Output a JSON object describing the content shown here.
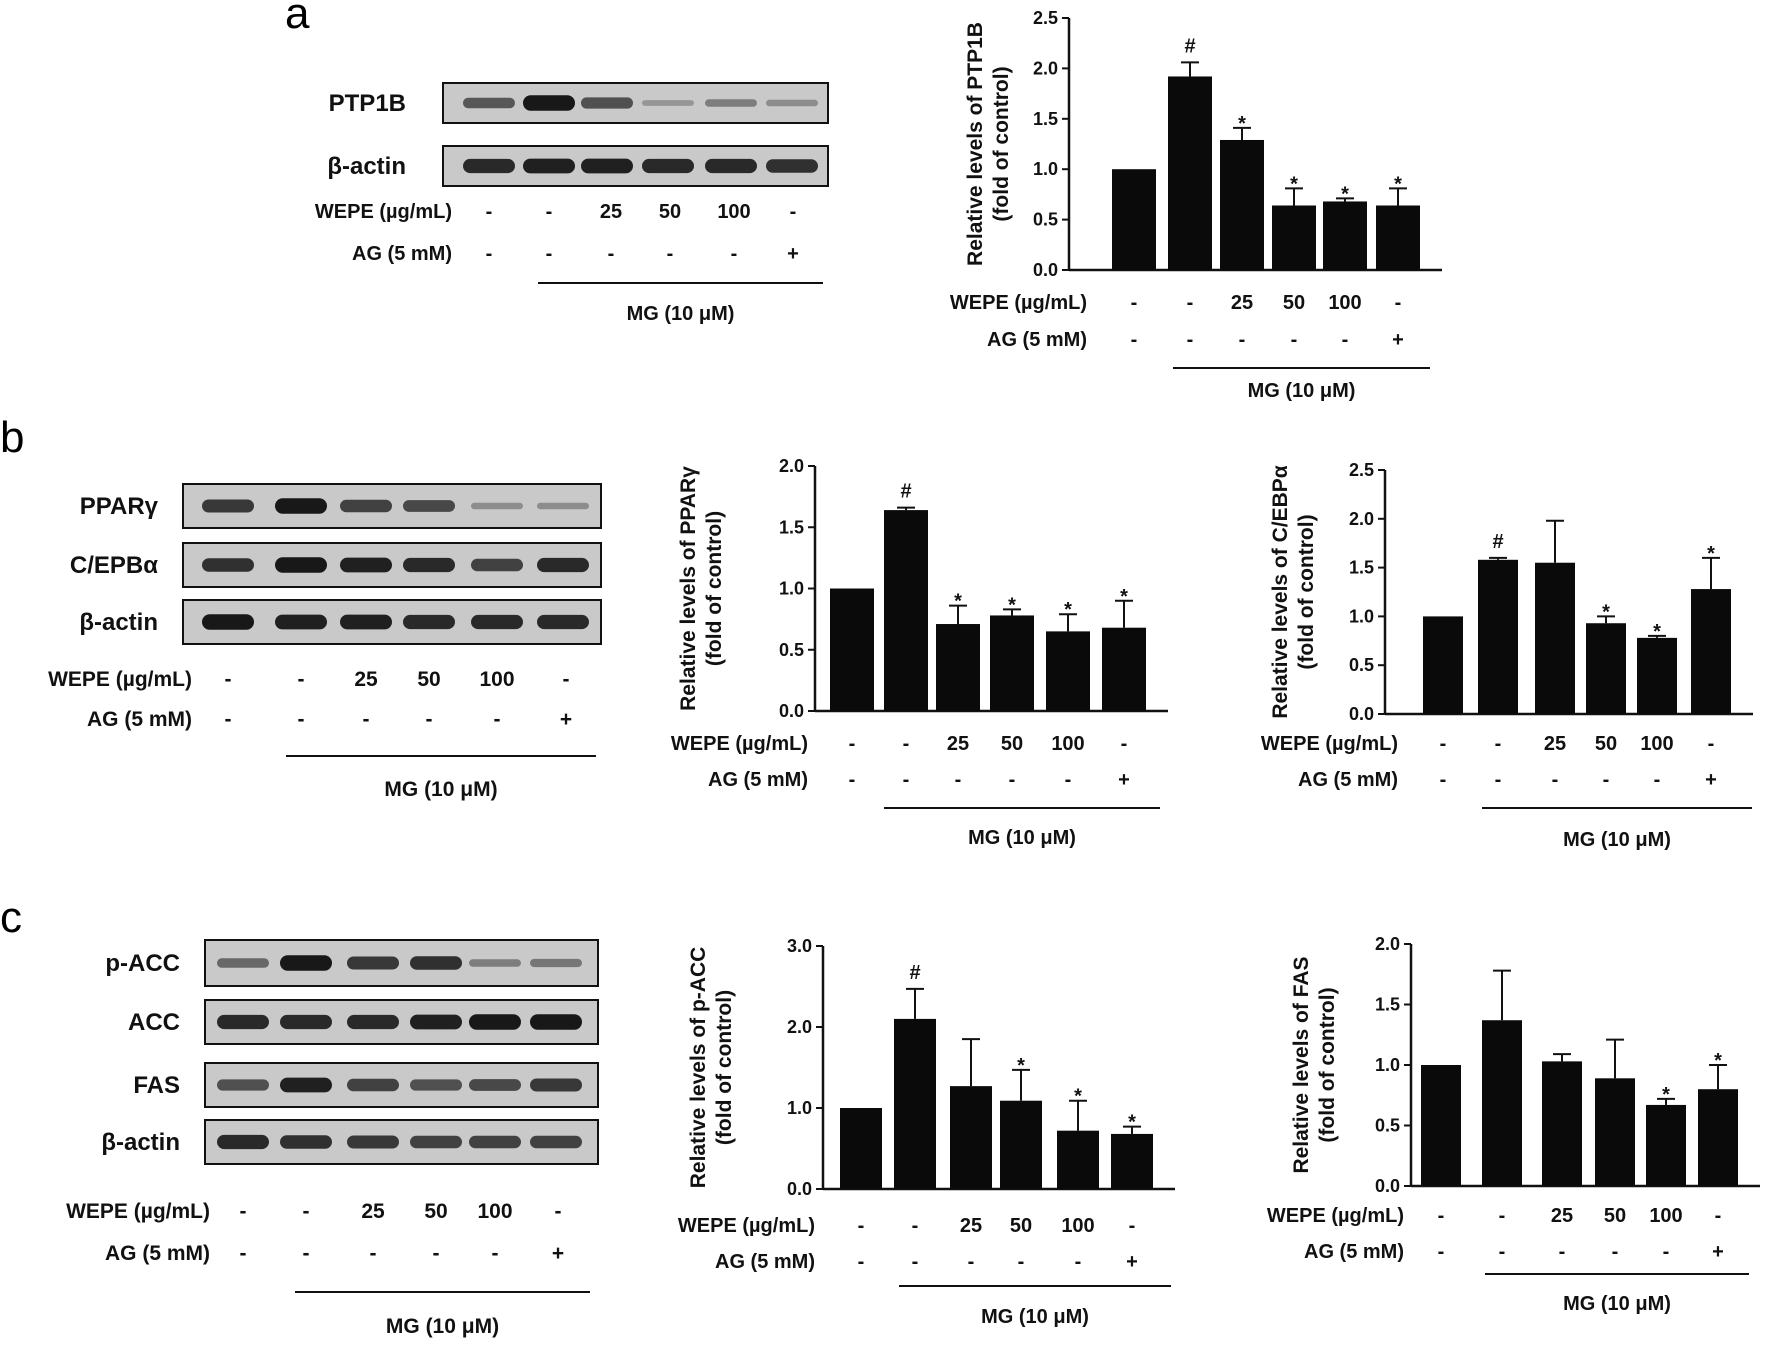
{
  "conditions": {
    "wepe_label": "WEPE (µg/mL)",
    "ag_label": "AG  (5 mM)",
    "wepe_values": [
      "-",
      "-",
      "25",
      "50",
      "100",
      "-"
    ],
    "ag_values": [
      "-",
      "-",
      "-",
      "-",
      "-",
      "+"
    ],
    "mg_label": "MG (10 μM)"
  },
  "panels": [
    {
      "letter": "a",
      "blots": [
        {
          "label": "PTP1B",
          "intensities": [
            0.55,
            0.95,
            0.6,
            0.15,
            0.3,
            0.2
          ]
        },
        {
          "label": "β-actin",
          "intensities": [
            0.85,
            0.9,
            0.9,
            0.85,
            0.85,
            0.8
          ]
        }
      ]
    },
    {
      "letter": "b",
      "blots": [
        {
          "label": "PPARγ",
          "intensities": [
            0.75,
            0.95,
            0.7,
            0.65,
            0.2,
            0.2
          ]
        },
        {
          "label": "C/EPBα",
          "intensities": [
            0.8,
            0.95,
            0.9,
            0.85,
            0.7,
            0.85
          ]
        },
        {
          "label": "β-actin",
          "intensities": [
            0.95,
            0.9,
            0.9,
            0.85,
            0.85,
            0.85
          ]
        }
      ]
    },
    {
      "letter": "c",
      "blots": [
        {
          "label": "p-ACC",
          "intensities": [
            0.45,
            0.95,
            0.75,
            0.8,
            0.3,
            0.35
          ]
        },
        {
          "label": "ACC",
          "intensities": [
            0.85,
            0.85,
            0.85,
            0.9,
            0.95,
            0.95
          ]
        },
        {
          "label": "FAS",
          "intensities": [
            0.6,
            0.9,
            0.7,
            0.6,
            0.65,
            0.75
          ]
        },
        {
          "label": "β-actin",
          "intensities": [
            0.85,
            0.8,
            0.75,
            0.7,
            0.7,
            0.7
          ]
        }
      ]
    }
  ],
  "chart_data": [
    {
      "type": "bar",
      "ylabel": [
        "Relative levels of PTP1B",
        "(fold of control)"
      ],
      "ylim": [
        0,
        2.5
      ],
      "yticks": [
        "0.0",
        "0.5",
        "1.0",
        "1.5",
        "2.0",
        "2.5"
      ],
      "values": [
        1.0,
        1.92,
        1.29,
        0.64,
        0.68,
        0.64
      ],
      "errors": [
        0,
        0.14,
        0.12,
        0.17,
        0.03,
        0.17
      ],
      "marks": [
        "",
        "#",
        "*",
        "*",
        "*",
        "*"
      ]
    },
    {
      "type": "bar",
      "ylabel": [
        "Relative levels of PPARγ",
        "(fold of control)"
      ],
      "ylim": [
        0,
        2.0
      ],
      "yticks": [
        "0.0",
        "0.5",
        "1.0",
        "1.5",
        "2.0"
      ],
      "values": [
        1.0,
        1.64,
        0.71,
        0.78,
        0.65,
        0.68
      ],
      "errors": [
        0,
        0.02,
        0.15,
        0.05,
        0.14,
        0.22
      ],
      "marks": [
        "",
        "#",
        "*",
        "*",
        "*",
        "*"
      ]
    },
    {
      "type": "bar",
      "ylabel": [
        "Relative levels of C/EBPα",
        "(fold of control)"
      ],
      "ylim": [
        0,
        2.5
      ],
      "yticks": [
        "0.0",
        "0.5",
        "1.0",
        "1.5",
        "2.0",
        "2.5"
      ],
      "values": [
        1.0,
        1.58,
        1.55,
        0.93,
        0.78,
        1.28
      ],
      "errors": [
        0,
        0.02,
        0.43,
        0.07,
        0.02,
        0.32
      ],
      "marks": [
        "",
        "#",
        "",
        "*",
        "*",
        "*"
      ]
    },
    {
      "type": "bar",
      "ylabel": [
        "Relative levels of p-ACC",
        "(fold of control)"
      ],
      "ylim": [
        0,
        3.0
      ],
      "yticks": [
        "0.0",
        "1.0",
        "2.0",
        "3.0"
      ],
      "values": [
        1.0,
        2.1,
        1.27,
        1.09,
        0.72,
        0.68
      ],
      "errors": [
        0,
        0.37,
        0.58,
        0.38,
        0.37,
        0.09
      ],
      "marks": [
        "",
        "#",
        "",
        "*",
        "*",
        "*"
      ]
    },
    {
      "type": "bar",
      "ylabel": [
        "Relative levels of FAS",
        "(fold of control)"
      ],
      "ylim": [
        0,
        2.0
      ],
      "yticks": [
        "0.0",
        "0.5",
        "1.0",
        "1.5",
        "2.0"
      ],
      "values": [
        1.0,
        1.37,
        1.03,
        0.89,
        0.67,
        0.8
      ],
      "errors": [
        0,
        0.41,
        0.06,
        0.32,
        0.05,
        0.2
      ],
      "marks": [
        "",
        "",
        "",
        "",
        "*",
        "*"
      ]
    }
  ]
}
